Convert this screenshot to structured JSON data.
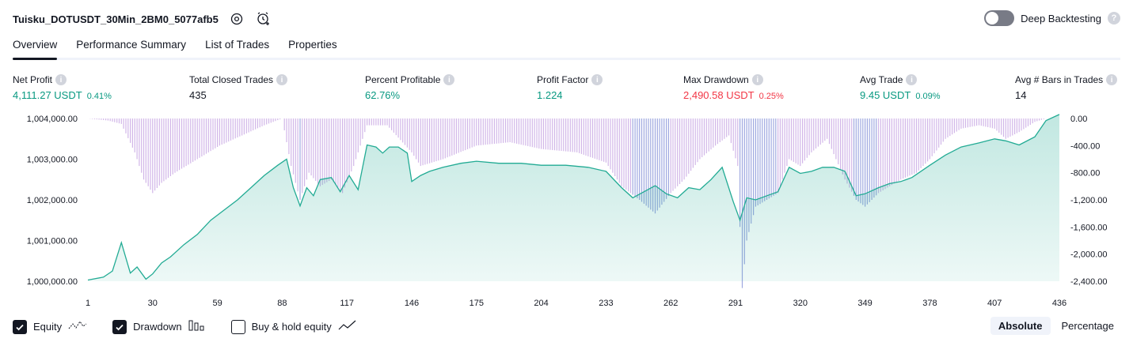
{
  "header": {
    "title": "Tuisku_DOTUSDT_30Min_2BM0_5077afb5",
    "deep_backtesting_label": "Deep Backtesting",
    "deep_backtesting_enabled": false
  },
  "tabs": [
    {
      "label": "Overview",
      "active": true
    },
    {
      "label": "Performance Summary",
      "active": false
    },
    {
      "label": "List of Trades",
      "active": false
    },
    {
      "label": "Properties",
      "active": false
    }
  ],
  "metrics": [
    {
      "label": "Net Profit",
      "value": "4,111.27 USDT",
      "pct": "0.41%",
      "color": "#089981"
    },
    {
      "label": "Total Closed Trades",
      "value": "435",
      "pct": "",
      "color": "#131722"
    },
    {
      "label": "Percent Profitable",
      "value": "62.76%",
      "pct": "",
      "color": "#089981"
    },
    {
      "label": "Profit Factor",
      "value": "1.224",
      "pct": "",
      "color": "#089981"
    },
    {
      "label": "Max Drawdown",
      "value": "2,490.58 USDT",
      "pct": "0.25%",
      "color": "#f23645"
    },
    {
      "label": "Avg Trade",
      "value": "9.45 USDT",
      "pct": "0.09%",
      "color": "#089981"
    },
    {
      "label": "Avg # Bars in Trades",
      "value": "14",
      "pct": "",
      "color": "#131722"
    }
  ],
  "chart_data": {
    "type": "area",
    "x_ticks": [
      "1",
      "30",
      "59",
      "88",
      "117",
      "146",
      "175",
      "204",
      "233",
      "262",
      "291",
      "320",
      "349",
      "378",
      "407",
      "436"
    ],
    "y_left_ticks": [
      "1,004,000.00",
      "1,003,000.00",
      "1,002,000.00",
      "1,001,000.00",
      "1,000,000.00"
    ],
    "y_right_ticks": [
      "0.00",
      "-400.00",
      "-800.00",
      "-1,200.00",
      "-1,600.00",
      "-2,000.00",
      "-2,400.00"
    ],
    "ylim_left": [
      1000000,
      1004000
    ],
    "ylim_right": [
      -2400,
      0
    ],
    "xlim": [
      1,
      436
    ],
    "equity_series": {
      "name": "Equity",
      "x": [
        1,
        8,
        12,
        16,
        20,
        23,
        27,
        30,
        34,
        38,
        44,
        50,
        56,
        62,
        68,
        74,
        80,
        86,
        90,
        93,
        96,
        99,
        102,
        105,
        110,
        114,
        118,
        122,
        126,
        130,
        133,
        136,
        140,
        144,
        146,
        150,
        154,
        160,
        168,
        175,
        185,
        195,
        204,
        215,
        225,
        233,
        240,
        245,
        250,
        255,
        260,
        265,
        270,
        275,
        280,
        285,
        290,
        293,
        296,
        300,
        305,
        310,
        315,
        320,
        325,
        330,
        335,
        340,
        345,
        349,
        355,
        360,
        365,
        370,
        378,
        385,
        392,
        400,
        407,
        412,
        418,
        425,
        430,
        436
      ],
      "y": [
        1000030,
        1000100,
        1000250,
        1000950,
        1000200,
        1000350,
        1000050,
        1000180,
        1000450,
        1000600,
        1000900,
        1001150,
        1001500,
        1001750,
        1002000,
        1002300,
        1002600,
        1002850,
        1003000,
        1002300,
        1001850,
        1002300,
        1002100,
        1002500,
        1002550,
        1002200,
        1002600,
        1002250,
        1003350,
        1003300,
        1003150,
        1003300,
        1003300,
        1003150,
        1002450,
        1002600,
        1002700,
        1002800,
        1002900,
        1002950,
        1002900,
        1002900,
        1002850,
        1002850,
        1002800,
        1002700,
        1002300,
        1002050,
        1002200,
        1002350,
        1002150,
        1002050,
        1002300,
        1002250,
        1002500,
        1002800,
        1001950,
        1001500,
        1002050,
        1002000,
        1002100,
        1002200,
        1002800,
        1002650,
        1002700,
        1002800,
        1002800,
        1002700,
        1002100,
        1002150,
        1002300,
        1002400,
        1002450,
        1002550,
        1002850,
        1003100,
        1003300,
        1003400,
        1003500,
        1003450,
        1003350,
        1003550,
        1003950,
        1004100
      ]
    },
    "drawdown_series": {
      "name": "Drawdown",
      "x": [
        1,
        10,
        16,
        22,
        26,
        30,
        34,
        40,
        50,
        60,
        70,
        80,
        88,
        92,
        96,
        100,
        105,
        110,
        115,
        120,
        126,
        135,
        146,
        150,
        160,
        175,
        190,
        204,
        220,
        233,
        240,
        248,
        255,
        262,
        268,
        275,
        282,
        288,
        292,
        294,
        296,
        300,
        305,
        310,
        315,
        320,
        325,
        332,
        340,
        345,
        349,
        355,
        360,
        365,
        372,
        378,
        385,
        392,
        400,
        407,
        412,
        418,
        425,
        430,
        436
      ],
      "y": [
        0,
        -30,
        -80,
        -500,
        -900,
        -1100,
        -950,
        -800,
        -600,
        -400,
        -250,
        -100,
        0,
        -700,
        -1200,
        -800,
        -1000,
        -900,
        -1100,
        -700,
        -100,
        -100,
        -500,
        -700,
        -600,
        -400,
        -350,
        -450,
        -500,
        -650,
        -1000,
        -1200,
        -1400,
        -1100,
        -900,
        -600,
        -400,
        -250,
        -700,
        -2500,
        -1800,
        -1300,
        -1200,
        -1100,
        -600,
        -700,
        -500,
        -300,
        -900,
        -1200,
        -1300,
        -1100,
        -1000,
        -900,
        -800,
        -600,
        -300,
        -150,
        -100,
        -150,
        -300,
        -200,
        -50,
        0,
        0
      ]
    }
  },
  "legend": [
    {
      "label": "Equity",
      "checked": true,
      "icon": "equity-line-icon"
    },
    {
      "label": "Drawdown",
      "checked": true,
      "icon": "drawdown-bars-icon"
    },
    {
      "label": "Buy & hold equity",
      "checked": false,
      "icon": "buy-hold-line-icon"
    }
  ],
  "scale_buttons": [
    {
      "label": "Absolute",
      "active": true
    },
    {
      "label": "Percentage",
      "active": false
    }
  ],
  "colors": {
    "equity_line": "#22ab94",
    "drawdown_bar": "#d1b6e8",
    "drawdown_deep": "#9ea8e0"
  }
}
